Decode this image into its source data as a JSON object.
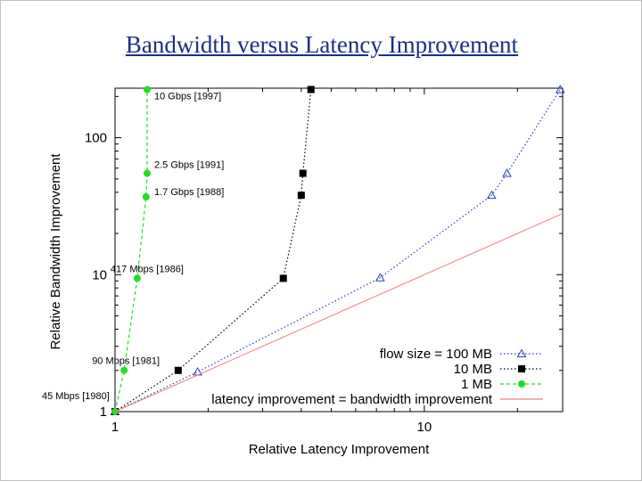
{
  "slide": {
    "title": "Bandwidth versus Latency Improvement"
  },
  "chart_data": {
    "type": "line",
    "title": "Bandwidth versus Latency Improvement",
    "xlabel": "Relative Latency Improvement",
    "ylabel": "Relative Bandwidth Improvement",
    "xscale": "log",
    "yscale": "log",
    "xlim": [
      1,
      28
    ],
    "ylim": [
      1,
      230
    ],
    "x_ticks": [
      {
        "value": 1,
        "label": "1"
      },
      {
        "value": 10,
        "label": "10"
      }
    ],
    "y_ticks": [
      {
        "value": 1,
        "label": "1"
      },
      {
        "value": 10,
        "label": "10"
      },
      {
        "value": 100,
        "label": "100"
      }
    ],
    "legend_position": "bottom-right",
    "series": [
      {
        "name": "flow size = 100 MB",
        "color": "#2b3fbf",
        "marker": "triangle-open",
        "line_style": "dotted",
        "x": [
          1,
          1.85,
          7.2,
          16.5,
          18.5,
          27.5
        ],
        "y": [
          1,
          1.95,
          9.5,
          38,
          55,
          225
        ]
      },
      {
        "name": "10 MB",
        "color": "#000000",
        "marker": "square",
        "line_style": "dotted",
        "x": [
          1,
          1.6,
          3.5,
          4.0,
          4.05,
          4.3
        ],
        "y": [
          1,
          2,
          9.4,
          38,
          55,
          225
        ]
      },
      {
        "name": "1 MB",
        "color": "#22dd22",
        "marker": "circle",
        "line_style": "dashed",
        "x": [
          1,
          1.07,
          1.18,
          1.26,
          1.27,
          1.27
        ],
        "y": [
          1,
          2,
          9.4,
          37,
          55,
          225
        ]
      },
      {
        "name": "latency improvement =  bandwidth improvement",
        "color": "#f08080",
        "marker": "none",
        "line_style": "solid",
        "x": [
          1,
          28
        ],
        "y": [
          1,
          28
        ]
      }
    ],
    "annotations": [
      {
        "text": "10 Gbps [1997]",
        "x": 1.27,
        "y": 225
      },
      {
        "text": "2.5 Gbps [1991]",
        "x": 1.27,
        "y": 55
      },
      {
        "text": "1.7 Gbps [1988]",
        "x": 1.27,
        "y": 37
      },
      {
        "text": "417 Mbps [1986]",
        "x": 1.18,
        "y": 9.4
      },
      {
        "text": "90 Mbps [1981]",
        "x": 1.07,
        "y": 2
      },
      {
        "text": "45 Mbps [1980]",
        "x": 1,
        "y": 1
      }
    ]
  }
}
